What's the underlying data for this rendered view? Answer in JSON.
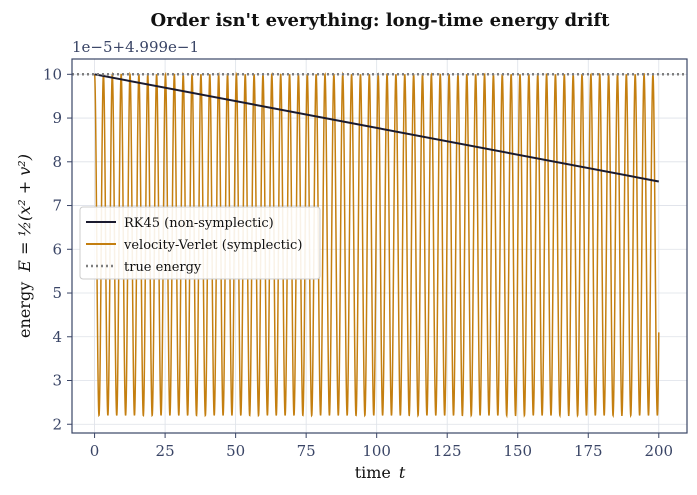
{
  "chart_data": {
    "type": "line",
    "title": "Order isn't everything: long-time energy drift",
    "xlabel": "time",
    "xlabel_var": "t",
    "ylabel": "energy",
    "ylabel_formula": "E = ½(x² + v²)",
    "y_offset_label": "1e−5+4.999e−1",
    "xlim": [
      -8,
      210
    ],
    "ylim": [
      1.8,
      10.35
    ],
    "xticks": [
      0,
      25,
      50,
      75,
      100,
      125,
      150,
      175,
      200
    ],
    "yticks": [
      2,
      3,
      4,
      5,
      6,
      7,
      8,
      9,
      10
    ],
    "grid": true,
    "legend_position": "center-left",
    "series": [
      {
        "name": "RK45 (non-symplectic)",
        "color": "#1a1a2e",
        "style": "solid",
        "x": [
          0,
          200
        ],
        "y": [
          10.0,
          7.55
        ]
      },
      {
        "name": "velocity-Verlet (symplectic)",
        "color": "#c47f10",
        "style": "solid",
        "oscillation": {
          "max": 10.0,
          "min": 2.2,
          "period": 3.1416,
          "x_start": 0,
          "x_end": 200,
          "end_value": 4.1
        }
      },
      {
        "name": "true energy",
        "color": "#7f7f7f",
        "style": "dotted",
        "x": [
          -8,
          210
        ],
        "y": [
          10.0,
          10.0
        ]
      }
    ]
  }
}
